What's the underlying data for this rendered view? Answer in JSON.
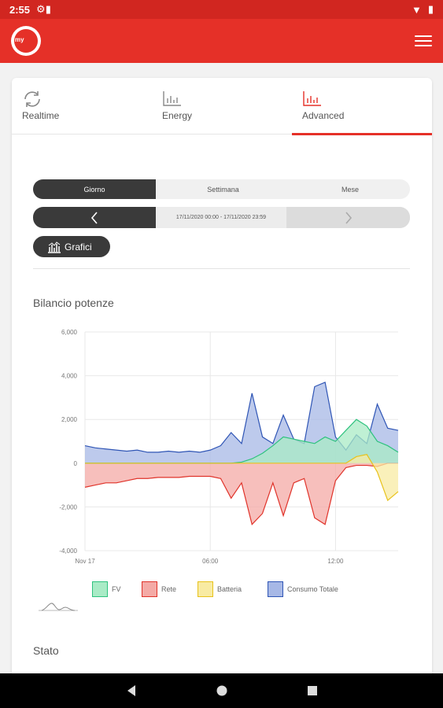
{
  "status_bar": {
    "time": "2:55"
  },
  "app": {
    "logo_text": "my"
  },
  "tabs": [
    {
      "label": "Realtime"
    },
    {
      "label": "Energy"
    },
    {
      "label": "Advanced"
    }
  ],
  "period_selector": {
    "options": [
      "Giorno",
      "Settimana",
      "Mese"
    ],
    "selected": "Giorno"
  },
  "date_nav": {
    "range": "17/11/2020 00:00 - 17/11/2020 23:59"
  },
  "charts_button": {
    "label": "Grafici"
  },
  "section_title": "Bilancio potenze",
  "stato_title": "Stato",
  "colors": {
    "accent": "#e53028",
    "fv": "#2ec27e",
    "rete": "#e0332a",
    "batteria": "#e8c21b",
    "consumo": "#2f55b5"
  },
  "chart_data": {
    "type": "area",
    "title": "Bilancio potenze",
    "ylim": [
      -4000,
      6000
    ],
    "y_ticks": [
      "6,000",
      "4,000",
      "2,000",
      "0",
      "-2,000",
      "-4,000"
    ],
    "x_tick_labels": [
      "Nov 17",
      "06:00",
      "12:00"
    ],
    "x_hours": [
      0,
      0.5,
      1,
      1.5,
      2,
      2.5,
      3,
      3.5,
      4,
      4.5,
      5,
      5.5,
      6,
      6.5,
      7,
      7.5,
      8,
      8.5,
      9,
      9.5,
      10,
      10.5,
      11,
      11.5,
      12,
      12.5,
      13,
      13.5,
      14,
      14.5,
      15
    ],
    "series": [
      {
        "name": "FV",
        "values": [
          0,
          0,
          0,
          0,
          0,
          0,
          0,
          0,
          0,
          0,
          0,
          0,
          0,
          0,
          0,
          50,
          200,
          450,
          800,
          1200,
          1100,
          1000,
          900,
          1200,
          1000,
          1500,
          2000,
          1700,
          1000,
          800,
          500
        ]
      },
      {
        "name": "Rete",
        "values": [
          -1100,
          -1000,
          -900,
          -900,
          -800,
          -700,
          -700,
          -650,
          -650,
          -650,
          -600,
          -600,
          -600,
          -700,
          -1600,
          -900,
          -2800,
          -2300,
          -900,
          -2400,
          -900,
          -700,
          -2500,
          -2800,
          -800,
          -200,
          -100,
          -100,
          -150,
          0,
          0
        ]
      },
      {
        "name": "Batteria",
        "values": [
          0,
          0,
          0,
          0,
          0,
          0,
          0,
          0,
          0,
          0,
          0,
          0,
          0,
          0,
          0,
          0,
          0,
          0,
          0,
          0,
          0,
          0,
          0,
          0,
          0,
          0,
          300,
          400,
          -400,
          -1700,
          -1300
        ]
      },
      {
        "name": "Consumo Totale",
        "values": [
          800,
          700,
          650,
          600,
          550,
          600,
          500,
          500,
          550,
          500,
          550,
          500,
          600,
          800,
          1400,
          900,
          3200,
          1200,
          900,
          2200,
          1100,
          900,
          3500,
          3700,
          1200,
          600,
          1300,
          900,
          2700,
          1600,
          1500
        ]
      }
    ],
    "legend": [
      "FV",
      "Rete",
      "Batteria",
      "Consumo Totale"
    ]
  }
}
